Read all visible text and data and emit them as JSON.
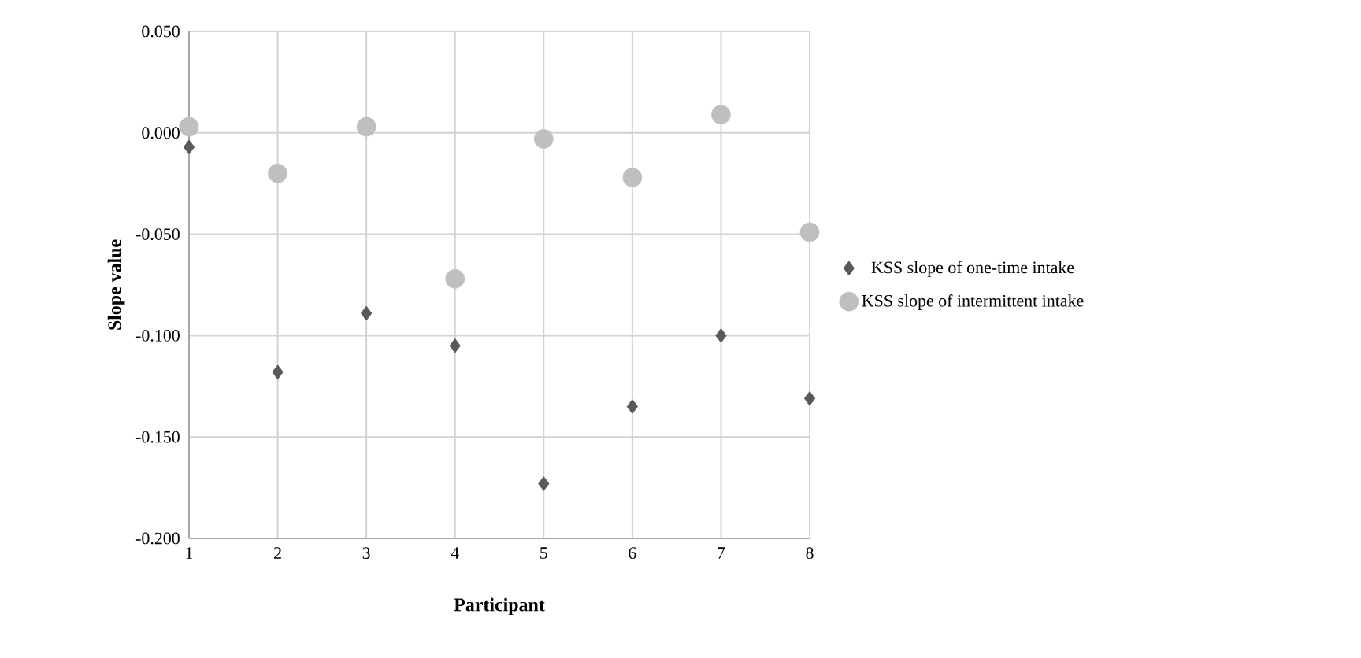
{
  "chart_data": {
    "type": "scatter",
    "xlabel": "Participant",
    "ylabel": "Slope value",
    "x": [
      1,
      2,
      3,
      4,
      5,
      6,
      7,
      8
    ],
    "series": [
      {
        "name": "KSS slope of one-time intake",
        "color": "#595959",
        "marker": "diamond",
        "values": [
          -0.007,
          -0.118,
          -0.089,
          -0.105,
          -0.173,
          -0.135,
          -0.1,
          -0.131
        ]
      },
      {
        "name": "KSS slope of intermittent intake",
        "color": "#bfbfbf",
        "marker": "circle",
        "values": [
          0.003,
          -0.02,
          0.003,
          -0.072,
          -0.003,
          -0.022,
          0.009,
          -0.049
        ]
      }
    ],
    "xlim": [
      1,
      8
    ],
    "xticks": [
      1,
      2,
      3,
      4,
      5,
      6,
      7,
      8
    ],
    "ylim": [
      -0.2,
      0.05
    ],
    "yticks": [
      {
        "value": -0.2,
        "label": "-0.200"
      },
      {
        "value": -0.15,
        "label": "-0.150"
      },
      {
        "value": -0.1,
        "label": "-0.100"
      },
      {
        "value": -0.05,
        "label": "-0.050"
      },
      {
        "value": 0,
        "label": "0.000"
      },
      {
        "value": 0.05,
        "label": "0.050"
      }
    ],
    "grid": true,
    "legend": "right"
  }
}
